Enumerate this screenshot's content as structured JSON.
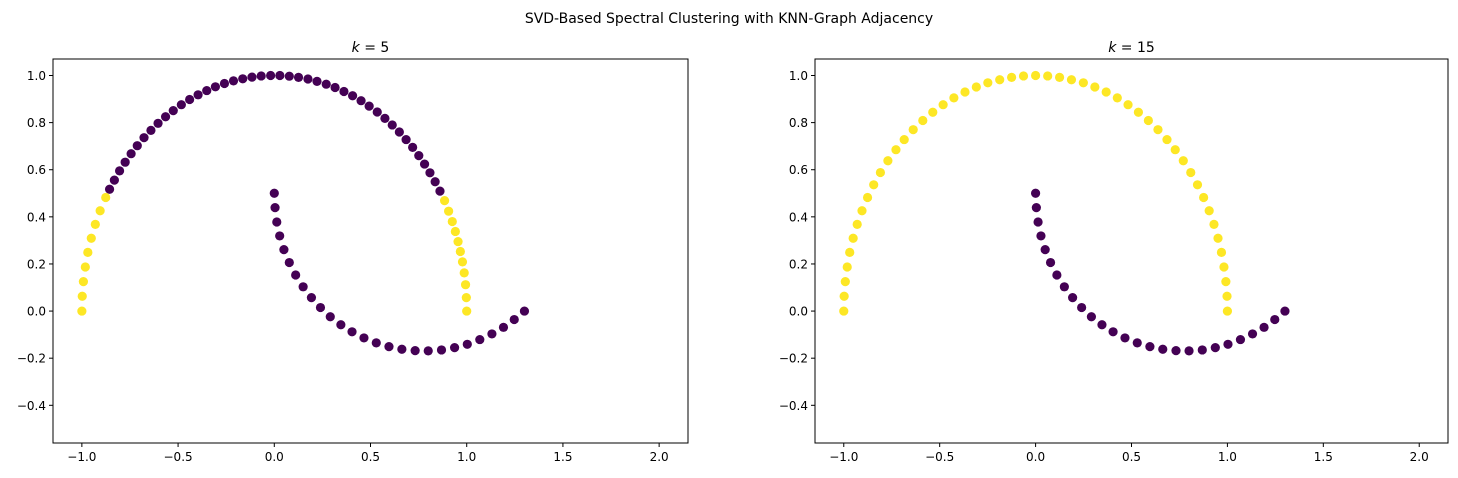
{
  "figure": {
    "suptitle": "SVD-Based Spectral Clustering with KNN-Graph Adjacency"
  },
  "colors": {
    "cluster_0": "#440154",
    "cluster_1": "#fde725",
    "axes": "#000000"
  },
  "chart_data": [
    {
      "type": "scatter",
      "title": "k = 5",
      "title_parts": {
        "var": "k",
        "rest": " = 5"
      },
      "xlabel": "",
      "ylabel": "",
      "xlim": [
        -1.15,
        2.15
      ],
      "ylim": [
        -0.56,
        1.07
      ],
      "xticks": [
        -1.0,
        -0.5,
        0.0,
        0.5,
        1.0,
        1.5,
        2.0
      ],
      "xtick_labels": [
        "−1.0",
        "−0.5",
        "0.0",
        "0.5",
        "1.0",
        "1.5",
        "2.0"
      ],
      "yticks": [
        -0.4,
        -0.2,
        0.0,
        0.2,
        0.4,
        0.6,
        0.8,
        1.0
      ],
      "ytick_labels": [
        "−0.4",
        "−0.2",
        "0.0",
        "0.2",
        "0.4",
        "0.6",
        "0.8",
        "1.0"
      ],
      "grid": false,
      "legend": "none",
      "series": [
        {
          "color": "#440154",
          "points": [
            [
              -0.856,
              0.517
            ],
            [
              -0.831,
              0.556
            ],
            [
              -0.804,
              0.595
            ],
            [
              -0.775,
              0.632
            ],
            [
              -0.744,
              0.668
            ],
            [
              -0.712,
              0.702
            ],
            [
              -0.677,
              0.736
            ],
            [
              -0.641,
              0.767
            ],
            [
              -0.604,
              0.797
            ],
            [
              -0.565,
              0.825
            ],
            [
              -0.525,
              0.851
            ],
            [
              -0.483,
              0.876
            ],
            [
              -0.44,
              0.898
            ],
            [
              -0.396,
              0.918
            ],
            [
              -0.351,
              0.936
            ],
            [
              -0.306,
              0.952
            ],
            [
              -0.259,
              0.966
            ],
            [
              -0.212,
              0.977
            ],
            [
              -0.164,
              0.986
            ],
            [
              -0.116,
              0.993
            ],
            [
              -0.068,
              0.998
            ],
            [
              -0.019,
              1.0
            ],
            [
              0.029,
              1.0
            ],
            [
              0.078,
              0.997
            ],
            [
              0.126,
              0.992
            ],
            [
              0.175,
              0.985
            ],
            [
              0.222,
              0.975
            ],
            [
              0.27,
              0.963
            ],
            [
              0.316,
              0.949
            ],
            [
              0.362,
              0.932
            ],
            [
              0.407,
              0.914
            ],
            [
              0.451,
              0.893
            ],
            [
              0.493,
              0.87
            ],
            [
              0.535,
              0.845
            ],
            [
              0.575,
              0.818
            ],
            [
              0.613,
              0.79
            ],
            [
              0.65,
              0.76
            ],
            [
              0.685,
              0.728
            ],
            [
              0.719,
              0.695
            ],
            [
              0.751,
              0.66
            ],
            [
              0.781,
              0.624
            ],
            [
              0.809,
              0.587
            ],
            [
              0.836,
              0.549
            ],
            [
              0.861,
              0.509
            ],
            [
              0.0,
              0.5
            ],
            [
              0.004,
              0.439
            ],
            [
              0.013,
              0.378
            ],
            [
              0.028,
              0.319
            ],
            [
              0.05,
              0.261
            ],
            [
              0.078,
              0.206
            ],
            [
              0.111,
              0.153
            ],
            [
              0.15,
              0.103
            ],
            [
              0.193,
              0.057
            ],
            [
              0.24,
              0.015
            ],
            [
              0.291,
              -0.024
            ],
            [
              0.346,
              -0.058
            ],
            [
              0.404,
              -0.088
            ],
            [
              0.466,
              -0.114
            ],
            [
              0.53,
              -0.135
            ],
            [
              0.596,
              -0.151
            ],
            [
              0.663,
              -0.162
            ],
            [
              0.732,
              -0.168
            ],
            [
              0.8,
              -0.169
            ],
            [
              0.869,
              -0.165
            ],
            [
              0.937,
              -0.155
            ],
            [
              1.003,
              -0.141
            ],
            [
              1.068,
              -0.121
            ],
            [
              1.131,
              -0.097
            ],
            [
              1.191,
              -0.069
            ],
            [
              1.247,
              -0.036
            ],
            [
              1.3,
              0.0
            ]
          ]
        },
        {
          "color": "#fde725",
          "points": [
            [
              -1.0,
              0.0
            ],
            [
              -0.998,
              0.063
            ],
            [
              -0.992,
              0.125
            ],
            [
              -0.982,
              0.187
            ],
            [
              -0.969,
              0.249
            ],
            [
              -0.951,
              0.309
            ],
            [
              -0.93,
              0.368
            ],
            [
              -0.905,
              0.426
            ],
            [
              -0.876,
              0.482
            ],
            [
              0.885,
              0.469
            ],
            [
              0.906,
              0.424
            ],
            [
              0.925,
              0.38
            ],
            [
              0.941,
              0.338
            ],
            [
              0.955,
              0.295
            ],
            [
              0.967,
              0.253
            ],
            [
              0.978,
              0.209
            ],
            [
              0.987,
              0.162
            ],
            [
              0.994,
              0.112
            ],
            [
              0.998,
              0.057
            ],
            [
              1.0,
              0.0
            ]
          ]
        }
      ]
    },
    {
      "type": "scatter",
      "title": "k = 15",
      "title_parts": {
        "var": "k",
        "rest": " = 15"
      },
      "xlabel": "",
      "ylabel": "",
      "xlim": [
        -1.15,
        2.15
      ],
      "ylim": [
        -0.56,
        1.07
      ],
      "xticks": [
        -1.0,
        -0.5,
        0.0,
        0.5,
        1.0,
        1.5,
        2.0
      ],
      "xtick_labels": [
        "−1.0",
        "−0.5",
        "0.0",
        "0.5",
        "1.0",
        "1.5",
        "2.0"
      ],
      "yticks": [
        -0.4,
        -0.2,
        0.0,
        0.2,
        0.4,
        0.6,
        0.8,
        1.0
      ],
      "ytick_labels": [
        "−0.4",
        "−0.2",
        "0.0",
        "0.2",
        "0.4",
        "0.6",
        "0.8",
        "1.0"
      ],
      "grid": false,
      "legend": "none",
      "series": [
        {
          "color": "#440154",
          "points": [
            [
              0.0,
              0.5
            ],
            [
              0.004,
              0.439
            ],
            [
              0.013,
              0.378
            ],
            [
              0.028,
              0.319
            ],
            [
              0.05,
              0.261
            ],
            [
              0.078,
              0.206
            ],
            [
              0.111,
              0.153
            ],
            [
              0.15,
              0.103
            ],
            [
              0.193,
              0.057
            ],
            [
              0.24,
              0.015
            ],
            [
              0.291,
              -0.024
            ],
            [
              0.346,
              -0.058
            ],
            [
              0.404,
              -0.088
            ],
            [
              0.466,
              -0.114
            ],
            [
              0.53,
              -0.135
            ],
            [
              0.596,
              -0.151
            ],
            [
              0.663,
              -0.162
            ],
            [
              0.732,
              -0.168
            ],
            [
              0.8,
              -0.169
            ],
            [
              0.869,
              -0.165
            ],
            [
              0.937,
              -0.155
            ],
            [
              1.003,
              -0.141
            ],
            [
              1.068,
              -0.121
            ],
            [
              1.131,
              -0.097
            ],
            [
              1.191,
              -0.069
            ],
            [
              1.247,
              -0.036
            ],
            [
              1.3,
              0.0
            ]
          ]
        },
        {
          "color": "#fde725",
          "points": [
            [
              -1.0,
              0.0
            ],
            [
              -0.998,
              0.063
            ],
            [
              -0.992,
              0.125
            ],
            [
              -0.982,
              0.187
            ],
            [
              -0.969,
              0.249
            ],
            [
              -0.951,
              0.309
            ],
            [
              -0.93,
              0.368
            ],
            [
              -0.905,
              0.426
            ],
            [
              -0.876,
              0.482
            ],
            [
              -0.844,
              0.536
            ],
            [
              -0.809,
              0.588
            ],
            [
              -0.77,
              0.638
            ],
            [
              -0.728,
              0.685
            ],
            [
              -0.685,
              0.728
            ],
            [
              -0.638,
              0.77
            ],
            [
              -0.588,
              0.809
            ],
            [
              -0.536,
              0.844
            ],
            [
              -0.482,
              0.876
            ],
            [
              -0.426,
              0.905
            ],
            [
              -0.368,
              0.93
            ],
            [
              -0.309,
              0.951
            ],
            [
              -0.249,
              0.969
            ],
            [
              -0.187,
              0.982
            ],
            [
              -0.125,
              0.992
            ],
            [
              -0.063,
              0.998
            ],
            [
              0.0,
              1.0
            ],
            [
              0.063,
              0.998
            ],
            [
              0.125,
              0.992
            ],
            [
              0.187,
              0.982
            ],
            [
              0.249,
              0.969
            ],
            [
              0.309,
              0.951
            ],
            [
              0.368,
              0.93
            ],
            [
              0.426,
              0.905
            ],
            [
              0.482,
              0.876
            ],
            [
              0.536,
              0.844
            ],
            [
              0.588,
              0.809
            ],
            [
              0.638,
              0.77
            ],
            [
              0.685,
              0.728
            ],
            [
              0.728,
              0.685
            ],
            [
              0.77,
              0.638
            ],
            [
              0.809,
              0.588
            ],
            [
              0.844,
              0.536
            ],
            [
              0.876,
              0.482
            ],
            [
              0.905,
              0.426
            ],
            [
              0.93,
              0.368
            ],
            [
              0.951,
              0.309
            ],
            [
              0.969,
              0.249
            ],
            [
              0.982,
              0.187
            ],
            [
              0.992,
              0.125
            ],
            [
              0.998,
              0.063
            ],
            [
              1.0,
              0.0
            ]
          ]
        }
      ]
    }
  ]
}
